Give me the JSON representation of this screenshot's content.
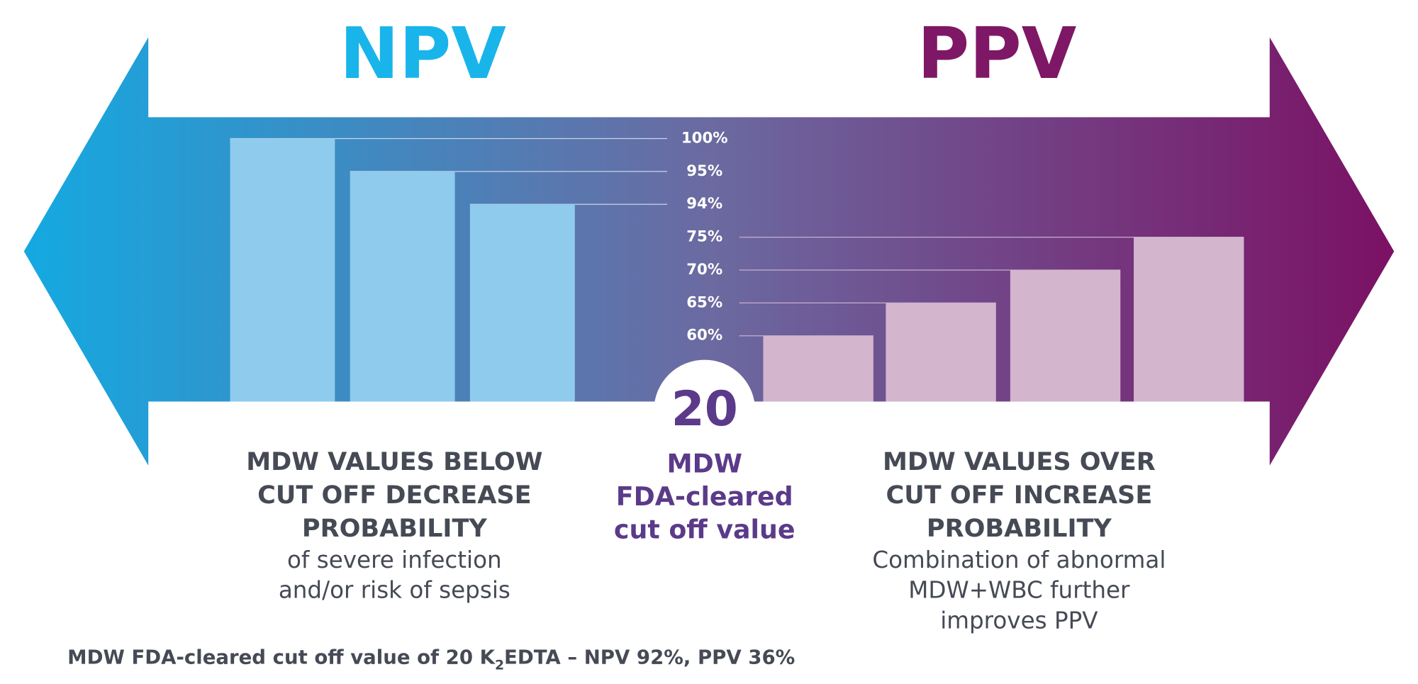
{
  "titles": {
    "left": "NPV",
    "right": "PPV"
  },
  "scale": {
    "ticks": [
      {
        "value": 100,
        "label": "100%"
      },
      {
        "value": 95,
        "label": "95%"
      },
      {
        "value": 94,
        "label": "94%"
      },
      {
        "value": 75,
        "label": "75%"
      },
      {
        "value": 70,
        "label": "70%"
      },
      {
        "value": 65,
        "label": "65%"
      },
      {
        "value": 60,
        "label": "60%"
      }
    ]
  },
  "npv_bars": [
    100,
    95,
    94
  ],
  "ppv_bars": [
    60,
    65,
    70,
    75
  ],
  "cutoff": {
    "value": 20,
    "lines": [
      "MDW",
      "FDA-cleared",
      "cut off value"
    ]
  },
  "left_text": {
    "heading": [
      "MDW VALUES BELOW",
      "CUT OFF DECREASE",
      "PROBABILITY"
    ],
    "body": [
      "of severe infection",
      "and/or risk of sepsis"
    ]
  },
  "right_text": {
    "heading": [
      "MDW VALUES OVER",
      "CUT OFF INCREASE",
      "PROBABILITY"
    ],
    "body": [
      "Combination of abnormal",
      "MDW+WBC further",
      "improves PPV"
    ]
  },
  "footnote": {
    "before": "MDW FDA-cleared cut off value of 20 K",
    "subscript": "2",
    "after": "EDTA – NPV 92%, PPV 36%"
  }
}
